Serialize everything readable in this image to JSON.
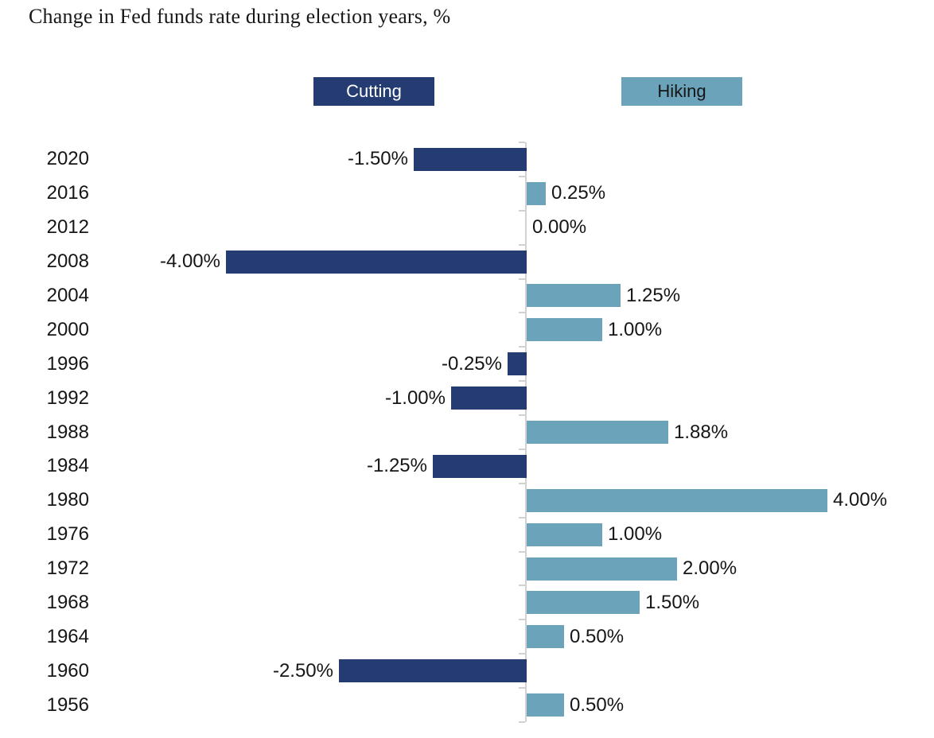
{
  "page": {
    "title": "Change in Fed funds rate during election years, %"
  },
  "legend": {
    "cutting_label": "Cutting",
    "hiking_label": "Hiking"
  },
  "colors": {
    "cutting_bar": "#253c72",
    "hiking_bar": "#6aa3ba",
    "axis_line": "#d2d2d2",
    "tick": "#d2d2d2",
    "label_text": "#161616",
    "title_text": "#181818",
    "legend_cutting_text": "#ffffff",
    "legend_hiking_text": "#161616",
    "background": "#ffffff"
  },
  "chart_data": {
    "type": "bar",
    "orientation": "horizontal",
    "title": "Change in Fed funds rate during election years, %",
    "value_unit": "%",
    "grid": false,
    "axis_style": "zero-centered vertical axis with left-side category ticks",
    "xlim": [
      -4.5,
      4.5
    ],
    "legend_position": "top",
    "series": [
      {
        "name": "Cutting",
        "role": "negative-values",
        "color": "#253c72"
      },
      {
        "name": "Hiking",
        "role": "positive-values",
        "color": "#6aa3ba"
      }
    ],
    "categories": [
      "2020",
      "2016",
      "2012",
      "2008",
      "2004",
      "2000",
      "1996",
      "1992",
      "1988",
      "1984",
      "1980",
      "1976",
      "1972",
      "1968",
      "1964",
      "1960",
      "1956"
    ],
    "values": [
      -1.5,
      0.25,
      0.0,
      -4.0,
      1.25,
      1.0,
      -0.25,
      -1.0,
      1.88,
      -1.25,
      4.0,
      1.0,
      2.0,
      1.5,
      0.5,
      -2.5,
      0.5
    ],
    "value_labels": [
      "-1.50%",
      "0.25%",
      "0.00%",
      "-4.00%",
      "1.25%",
      "1.00%",
      "-0.25%",
      "-1.00%",
      "1.88%",
      "-1.25%",
      "4.00%",
      "1.00%",
      "2.00%",
      "1.50%",
      "0.50%",
      "-2.50%",
      "0.50%"
    ]
  }
}
